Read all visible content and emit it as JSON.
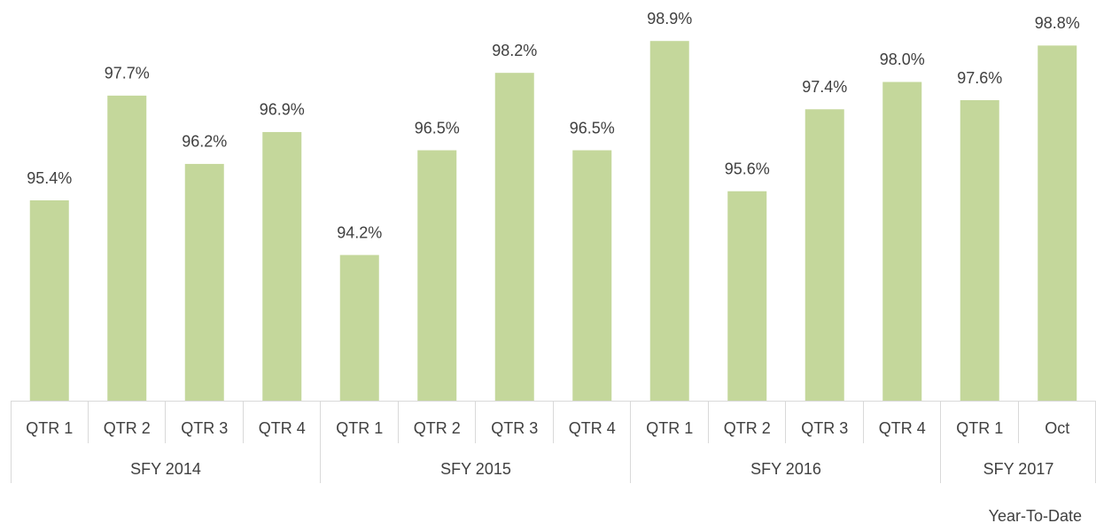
{
  "chart_data": {
    "type": "bar",
    "color": "#c4d79b",
    "groups": [
      {
        "name": "SFY 2014",
        "categories": [
          "QTR 1",
          "QTR 2",
          "QTR 3",
          "QTR 4"
        ],
        "values": [
          95.4,
          97.7,
          96.2,
          96.9
        ],
        "value_labels": [
          "95.4%",
          "97.7%",
          "96.2%",
          "96.9%"
        ]
      },
      {
        "name": "SFY 2015",
        "categories": [
          "QTR 1",
          "QTR 2",
          "QTR 3",
          "QTR 4"
        ],
        "values": [
          94.2,
          96.5,
          98.2,
          96.5
        ],
        "value_labels": [
          "94.2%",
          "96.5%",
          "98.2%",
          "96.5%"
        ]
      },
      {
        "name": "SFY 2016",
        "categories": [
          "QTR 1",
          "QTR 2",
          "QTR 3",
          "QTR 4"
        ],
        "values": [
          98.9,
          95.6,
          97.4,
          98.0
        ],
        "value_labels": [
          "98.9%",
          "95.6%",
          "97.4%",
          "98.0%"
        ]
      },
      {
        "name": "SFY 2017",
        "categories": [
          "QTR 1",
          "Oct"
        ],
        "values": [
          97.6,
          98.8
        ],
        "value_labels": [
          "97.6%",
          "98.8%"
        ]
      }
    ],
    "ylim": [
      91,
      99.8
    ],
    "annotation": "Year-To-Date"
  }
}
